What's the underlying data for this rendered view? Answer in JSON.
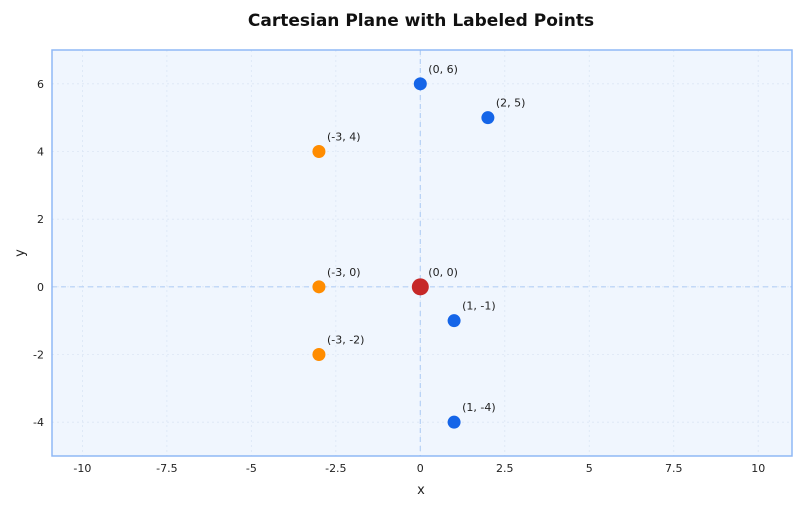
{
  "chart_data": {
    "type": "scatter",
    "title": "Cartesian Plane with Labeled Points",
    "xlabel": "x",
    "ylabel": "y",
    "xlim": [
      -10.9,
      11
    ],
    "ylim": [
      -5,
      7
    ],
    "xticks": [
      -10,
      -7.5,
      -5,
      -2.5,
      0,
      2.5,
      5,
      7.5,
      10
    ],
    "xtick_labels": [
      "-10",
      "-7.5",
      "-5",
      "-2.5",
      "0",
      "2.5",
      "5",
      "7.5",
      "10"
    ],
    "yticks": [
      -4,
      -2,
      0,
      2,
      4,
      6
    ],
    "ytick_labels": [
      "-4",
      "-2",
      "0",
      "2",
      "4",
      "6"
    ],
    "grid": true,
    "axis_lines_at_zero": true,
    "points": [
      {
        "x": 0,
        "y": 6,
        "label": "(0, 6)",
        "color": "#1565e8"
      },
      {
        "x": 2,
        "y": 5,
        "label": "(2, 5)",
        "color": "#1565e8"
      },
      {
        "x": -3,
        "y": 4,
        "label": "(-3, 4)",
        "color": "#ff8c00"
      },
      {
        "x": -3,
        "y": 0,
        "label": "(-3, 0)",
        "color": "#ff8c00"
      },
      {
        "x": 0,
        "y": 0,
        "label": "(0, 0)",
        "color": "#c62828"
      },
      {
        "x": 1,
        "y": -1,
        "label": "(1, -1)",
        "color": "#1565e8"
      },
      {
        "x": -3,
        "y": -2,
        "label": "(-3, -2)",
        "color": "#ff8c00"
      },
      {
        "x": 1,
        "y": -4,
        "label": "(1, -4)",
        "color": "#1565e8"
      }
    ],
    "colors": {
      "background": "#f0f6fe",
      "frame": "#8fb8f5",
      "zero_lines": "#b5d0f5"
    }
  }
}
